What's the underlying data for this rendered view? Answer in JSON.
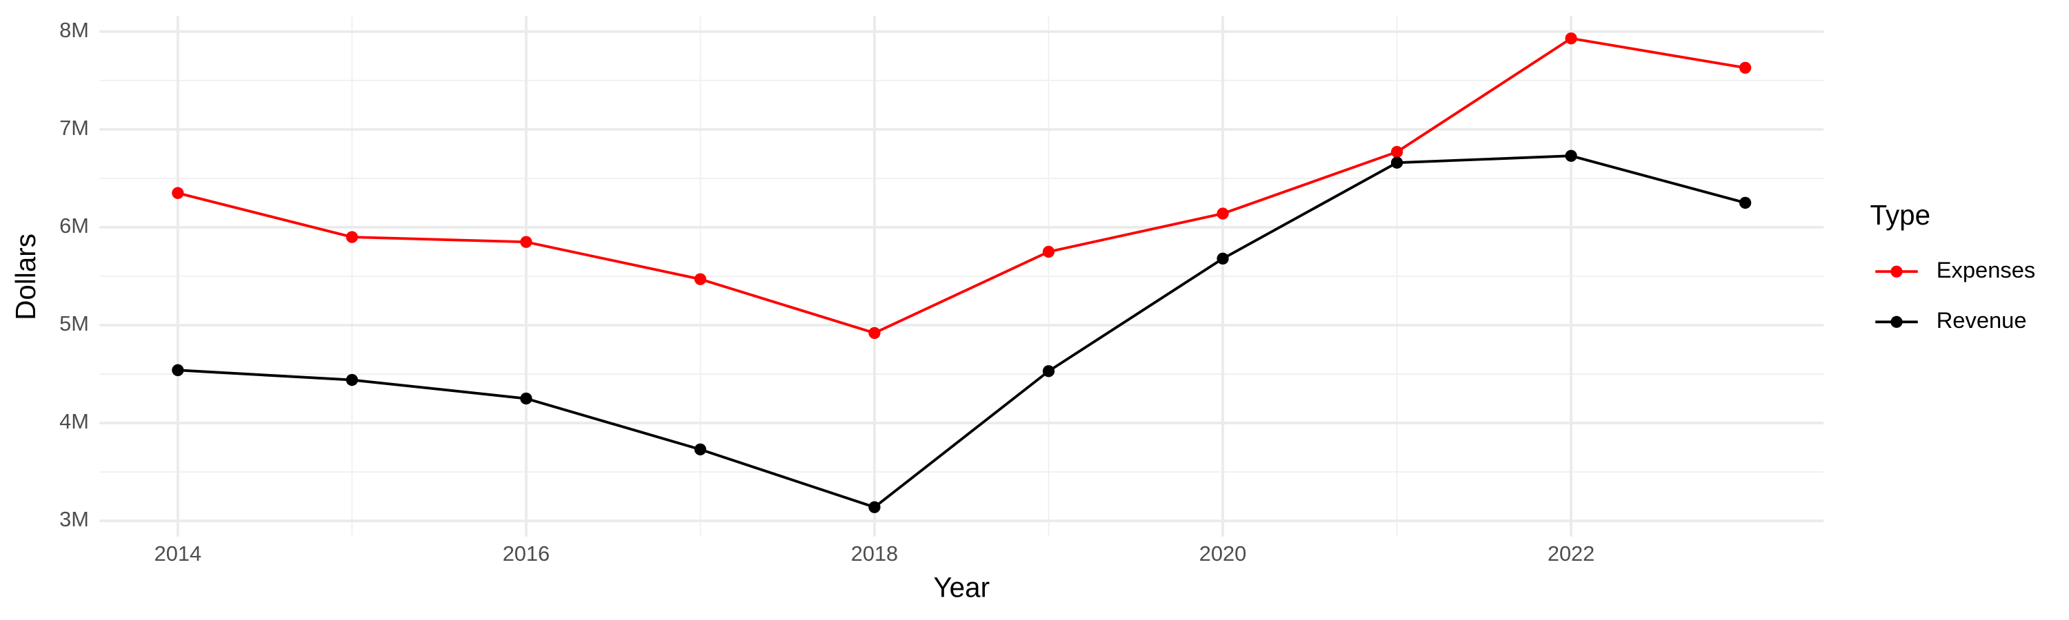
{
  "chart_data": {
    "type": "line",
    "x_label": "Year",
    "y_label": "Dollars",
    "legend_title": "Type",
    "legend_position": "right",
    "grid": true,
    "x": [
      2014,
      2015,
      2016,
      2017,
      2018,
      2019,
      2020,
      2021,
      2022,
      2023
    ],
    "series": [
      {
        "name": "Expenses",
        "color": "#ff0000",
        "values": [
          6350000,
          5900000,
          5850000,
          5470000,
          4920000,
          5750000,
          6140000,
          6770000,
          7930000,
          7630000
        ]
      },
      {
        "name": "Revenue",
        "color": "#000000",
        "values": [
          4540000,
          4440000,
          4250000,
          3730000,
          3140000,
          4530000,
          5680000,
          6660000,
          6730000,
          6250000
        ]
      }
    ],
    "xlim": [
      2013.55,
      2023.45
    ],
    "xticks": [
      2014,
      2016,
      2018,
      2020,
      2022
    ],
    "ylim": [
      2840000,
      8160000
    ],
    "yticks": [
      {
        "value": 3000000,
        "label": "3M"
      },
      {
        "value": 4000000,
        "label": "4M"
      },
      {
        "value": 5000000,
        "label": "5M"
      },
      {
        "value": 6000000,
        "label": "6M"
      },
      {
        "value": 7000000,
        "label": "7M"
      },
      {
        "value": 8000000,
        "label": "8M"
      }
    ]
  }
}
